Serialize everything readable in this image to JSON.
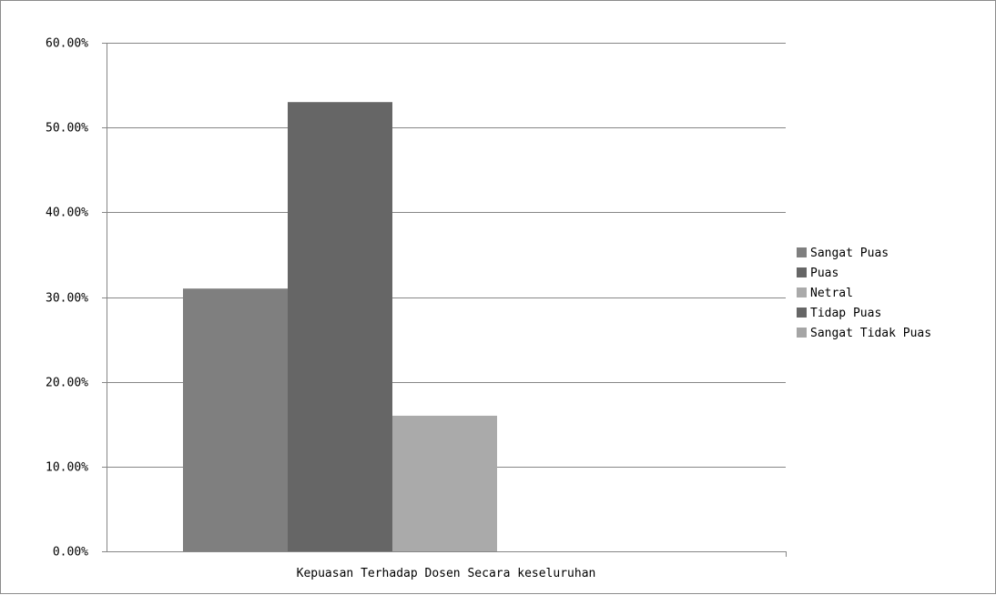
{
  "chart_data": {
    "type": "bar",
    "categories": [
      "Kepuasan Terhadap Dosen Secara keseluruhan"
    ],
    "series": [
      {
        "name": "Sangat Puas",
        "values": [
          0.31
        ],
        "color": "#7f7f7f"
      },
      {
        "name": "Puas",
        "values": [
          0.53
        ],
        "color": "#666666"
      },
      {
        "name": "Netral",
        "values": [
          0.16
        ],
        "color": "#aaaaaa"
      },
      {
        "name": "Tidap Puas",
        "values": [
          0.0
        ],
        "color": "#666666"
      },
      {
        "name": "Sangat Tidak Puas",
        "values": [
          0.0
        ],
        "color": "#a5a5a5"
      }
    ],
    "ylim": [
      0,
      0.6
    ],
    "yticks": [
      0,
      0.1,
      0.2,
      0.3,
      0.4,
      0.5,
      0.6
    ],
    "ytick_labels": [
      "0.00%",
      "10.00%",
      "20.00%",
      "30.00%",
      "40.00%",
      "50.00%",
      "60.00%"
    ],
    "title": "",
    "xlabel": "",
    "ylabel": "",
    "grid": true,
    "legend_position": "right"
  }
}
